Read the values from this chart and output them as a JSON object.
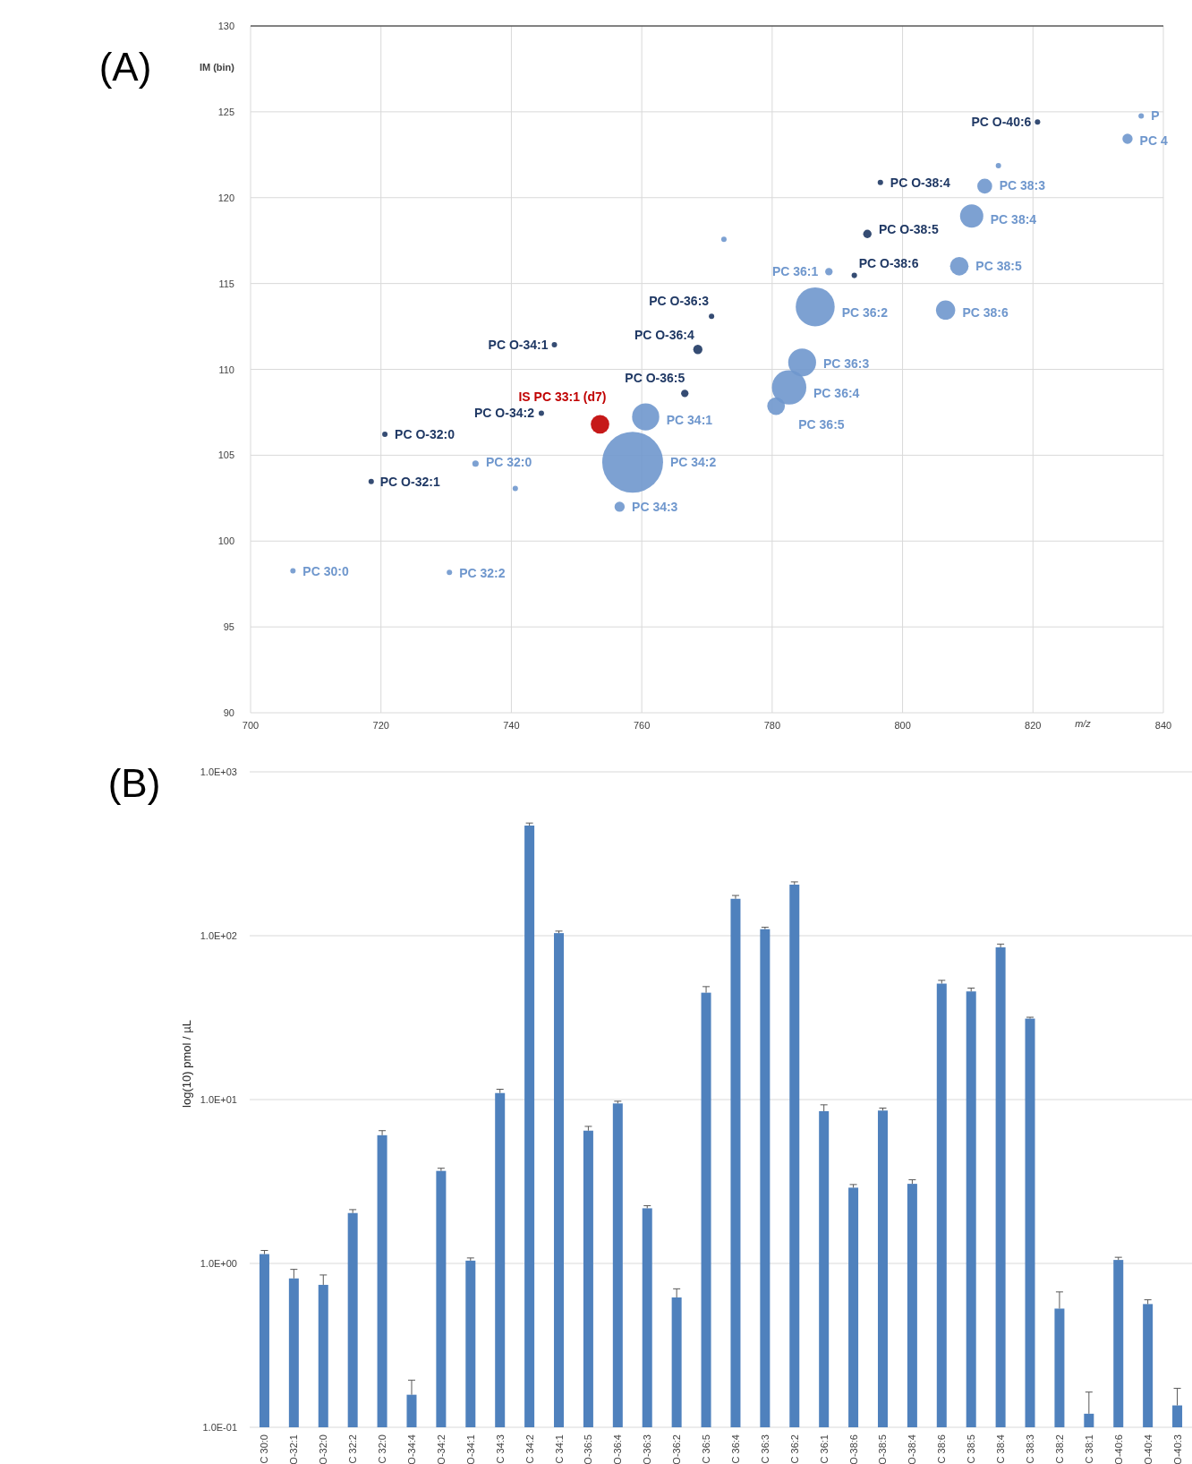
{
  "chart_data": [
    {
      "type": "bubble",
      "title": "(A)",
      "xlabel": "m/z",
      "ylabel": "IM (bin)",
      "xlim": [
        700,
        840
      ],
      "xticks": [
        700,
        720,
        740,
        760,
        780,
        800,
        820,
        840
      ],
      "ylim": [
        90,
        130
      ],
      "yticks": [
        90,
        95,
        100,
        105,
        110,
        115,
        120,
        125,
        130
      ],
      "grid": true,
      "series": [
        {
          "color": "#1f3864",
          "x": [
            766.6,
            768.6,
            792.6,
            794.6,
            796.6
          ],
          "values": [
            108.6,
            111.16,
            115.47,
            117.89,
            120.89
          ],
          "sizes": [
            0.015,
            0.023,
            0.008,
            0.019,
            0.008
          ]
        },
        {
          "type": "scatter",
          "marker": "circle",
          "color": "#1f3864",
          "x": [
            718.5,
            720.6,
            744.6,
            746.6,
            770.7,
            820.7
          ],
          "values": [
            103.47,
            106.22,
            107.45,
            111.43,
            113.09,
            124.41
          ]
        },
        {
          "type": "scatter",
          "marker": "circle",
          "color": "#6f97cd",
          "x": [
            706.5,
            730.5,
            740.6,
            772.6,
            814.7
          ],
          "values": [
            98.26,
            98.18,
            103.06,
            117.57,
            121.87
          ]
        },
        {
          "color": "#c00000",
          "x": [
            753.6
          ],
          "values": [
            106.8
          ],
          "sizes": [
            0.093
          ]
        },
        {
          "color": "#6f97cd",
          "x": [
            734.5,
            756.6,
            758.6,
            760.6,
            780.6,
            782.6,
            784.6,
            786.6,
            788.7,
            806.6,
            808.7,
            810.6,
            812.6,
            834.5,
            836.6
          ],
          "values": [
            104.51,
            102.0,
            104.59,
            107.23,
            107.86,
            108.95,
            110.4,
            113.64,
            115.69,
            113.45,
            116.01,
            118.93,
            120.67,
            123.43,
            124.76
          ],
          "sizes": [
            0.011,
            0.028,
            1,
            0.2,
            0.084,
            0.32,
            0.21,
            0.41,
            0.015,
            0.1,
            0.093,
            0.146,
            0.06,
            0.028,
            0.008
          ]
        }
      ],
      "annotations": [
        {
          "text": "PC O-32:1",
          "x": 718.5,
          "y": 103.47
        },
        {
          "text": "PC O-32:0",
          "x": 720.6,
          "y": 106.22
        },
        {
          "text": "PC O-34:2",
          "x": 744.6,
          "y": 107.45
        },
        {
          "text": "PC O-34:1",
          "x": 746.6,
          "y": 111.43
        },
        {
          "text": "PC O-36:5",
          "x": 766.6,
          "y": 108.6
        },
        {
          "text": "PC O-36:4",
          "x": 768.6,
          "y": 111.16
        },
        {
          "text": "PC O-36:3",
          "x": 770.7,
          "y": 113.09
        },
        {
          "text": "IS PC 33:1 (d7)",
          "x": 753.6,
          "y": 106.8
        },
        {
          "text": "PC 30:0",
          "x": 706.5,
          "y": 98.26
        },
        {
          "text": "PC 32:2",
          "x": 730.5,
          "y": 98.18
        },
        {
          "text": "PC 32:0",
          "x": 734.5,
          "y": 104.51
        },
        {
          "text": "PC 34:3",
          "x": 756.6,
          "y": 102.0
        },
        {
          "text": "PC 34:2",
          "x": 758.6,
          "y": 104.59
        },
        {
          "text": "PC 34:1",
          "x": 760.6,
          "y": 107.23
        },
        {
          "text": "PC 36:5",
          "x": 780.6,
          "y": 107.86
        },
        {
          "text": "PC 36:4",
          "x": 782.6,
          "y": 108.95
        },
        {
          "text": "PC 36:3",
          "x": 784.6,
          "y": 110.4
        },
        {
          "text": "PC 36:2",
          "x": 786.6,
          "y": 113.64
        },
        {
          "text": "PC 36:1",
          "x": 788.7,
          "y": 115.69
        },
        {
          "text": "PC 38:6",
          "x": 806.6,
          "y": 113.45
        },
        {
          "text": "PC 38:5",
          "x": 808.7,
          "y": 116.01
        },
        {
          "text": "PC 38:4",
          "x": 810.6,
          "y": 118.93
        },
        {
          "text": "PC 38:3",
          "x": 812.6,
          "y": 120.67
        },
        {
          "text": "PC O-38:6",
          "x": 792.6,
          "y": 115.47
        },
        {
          "text": "PC O-38:5",
          "x": 794.6,
          "y": 117.89
        },
        {
          "text": "PC O-38:4",
          "x": 796.6,
          "y": 120.89
        },
        {
          "text": "PC O-40:6",
          "x": 820.7,
          "y": 124.41
        },
        {
          "text": "PC 4",
          "x": 834.5,
          "y": 123.43
        },
        {
          "text": "P",
          "x": 836.6,
          "y": 124.76
        }
      ]
    },
    {
      "type": "bar",
      "title": "(B)",
      "ylabel": "log(10) pmol / µL",
      "log": true,
      "grid": "y",
      "color": "#4f81bd",
      "categories": [
        "C 30:0",
        "O-32:1",
        "O-32:0",
        "C 32:2",
        "C 32:0",
        "O-34:4",
        "O-34:2",
        "O-34:1",
        "C 34:3",
        "C 34:2",
        "C 34:1",
        "O-36:5",
        "O-36:4",
        "O-36:3",
        "O-36:2",
        "C 36:5",
        "C 36:4",
        "C 36:3",
        "C 36:2",
        "C 36:1",
        "O-38:6",
        "O-38:5",
        "O-38:4",
        "C 38:6",
        "C 38:5",
        "C 38:4",
        "C 38:3",
        "C 38:2",
        "C 38:1",
        "O-40:6",
        "O-40:4",
        "O-40:3"
      ],
      "values": [
        1.14,
        0.81,
        0.74,
        2.03,
        6.06,
        0.158,
        3.67,
        1.04,
        10.96,
        470,
        103.7,
        6.46,
        9.47,
        2.17,
        0.62,
        44.9,
        168,
        109.6,
        205,
        8.49,
        2.9,
        8.57,
        3.06,
        51,
        45.7,
        84.9,
        31.2,
        0.53,
        0.121,
        1.05,
        0.565,
        0.136
      ],
      "errors": [
        [
          1.14,
          1.2
        ],
        [
          0.81,
          0.92
        ],
        [
          0.74,
          0.85
        ],
        [
          2.03,
          2.13
        ],
        [
          6.06,
          6.46
        ],
        [
          0.158,
          0.194
        ],
        [
          3.67,
          3.81
        ],
        [
          1.04,
          1.08
        ],
        [
          10.96,
          11.56
        ],
        [
          470,
          487
        ],
        [
          103.7,
          106.7
        ],
        [
          6.46,
          6.86
        ],
        [
          9.47,
          9.77
        ],
        [
          2.17,
          2.25
        ],
        [
          0.62,
          0.7
        ],
        [
          44.9,
          48.9
        ],
        [
          168,
          176
        ],
        [
          109.6,
          112.6
        ],
        [
          205,
          213
        ],
        [
          8.49,
          9.29
        ],
        [
          2.9,
          3.03
        ],
        [
          8.57,
          8.87
        ],
        [
          3.06,
          3.24
        ],
        [
          51,
          53.4
        ],
        [
          45.7,
          47.9
        ],
        [
          84.9,
          88.9
        ],
        [
          31.2,
          31.8
        ],
        [
          0.53,
          0.67
        ],
        [
          0.121,
          0.164
        ],
        [
          1.05,
          1.09
        ],
        [
          0.565,
          0.6
        ],
        [
          0.136,
          0.173
        ]
      ],
      "ylim": [
        0.1,
        1000
      ],
      "yticks": [
        {
          "value": 0.1,
          "label": "1.0E-01"
        },
        {
          "value": 1,
          "label": "1.0E+00"
        },
        {
          "value": 10,
          "label": "1.0E+01"
        },
        {
          "value": 100,
          "label": "1.0E+02"
        },
        {
          "value": 1000,
          "label": "1.0E+03"
        }
      ]
    }
  ]
}
